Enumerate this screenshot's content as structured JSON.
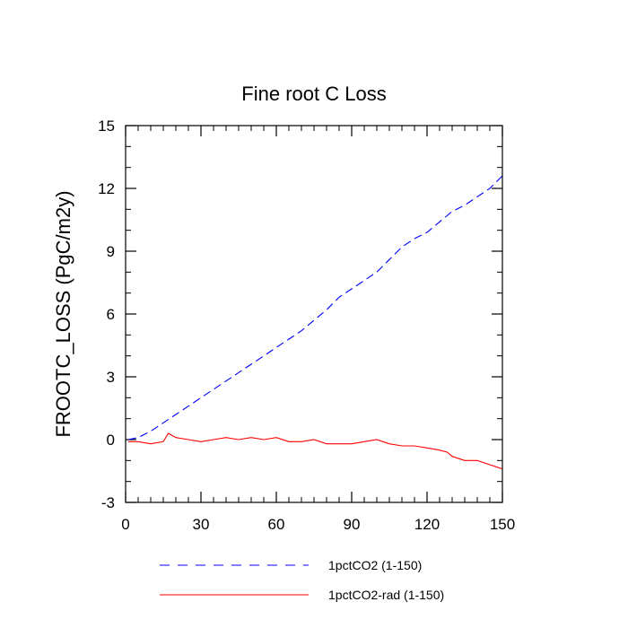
{
  "chart_data": {
    "type": "line",
    "title": "Fine root C Loss",
    "xlabel": "",
    "ylabel": "FROOTC_LOSS  (PgC/m2y)",
    "xlim": [
      0,
      150
    ],
    "ylim": [
      -3,
      15
    ],
    "x_ticks": [
      0,
      30,
      60,
      90,
      120,
      150
    ],
    "y_ticks": [
      -3,
      0,
      3,
      6,
      9,
      12,
      15
    ],
    "x_tick_labels": [
      "0",
      "30",
      "60",
      "90",
      "120",
      "150"
    ],
    "y_tick_labels": [
      "-3",
      "0",
      "3",
      "6",
      "9",
      "12",
      "15"
    ],
    "grid": false,
    "legend_position": "bottom",
    "series": [
      {
        "name": "1pctCO2 (1-150)",
        "color": "#0000ff",
        "style": "dashed",
        "x": [
          1,
          5,
          10,
          15,
          20,
          25,
          30,
          35,
          40,
          45,
          50,
          55,
          60,
          65,
          70,
          75,
          80,
          85,
          90,
          95,
          100,
          105,
          110,
          115,
          120,
          125,
          130,
          135,
          140,
          145,
          150
        ],
        "values": [
          0.0,
          0.1,
          0.4,
          0.8,
          1.2,
          1.6,
          2.0,
          2.4,
          2.8,
          3.2,
          3.6,
          4.0,
          4.4,
          4.8,
          5.2,
          5.7,
          6.2,
          6.8,
          7.2,
          7.6,
          8.0,
          8.6,
          9.2,
          9.6,
          9.9,
          10.4,
          10.9,
          11.2,
          11.6,
          12.0,
          12.6
        ]
      },
      {
        "name": "1pctCO2-rad (1-150)",
        "color": "#ff0000",
        "style": "solid",
        "x": [
          1,
          5,
          10,
          15,
          17,
          20,
          25,
          30,
          35,
          40,
          45,
          50,
          55,
          60,
          65,
          70,
          75,
          80,
          85,
          90,
          95,
          100,
          105,
          110,
          115,
          120,
          125,
          128,
          130,
          135,
          140,
          145,
          150
        ],
        "values": [
          -0.1,
          -0.1,
          -0.2,
          -0.1,
          0.3,
          0.1,
          0.0,
          -0.1,
          0.0,
          0.1,
          0.0,
          0.1,
          0.0,
          0.1,
          -0.1,
          -0.1,
          0.0,
          -0.2,
          -0.2,
          -0.2,
          -0.1,
          0.0,
          -0.2,
          -0.3,
          -0.3,
          -0.4,
          -0.5,
          -0.6,
          -0.8,
          -1.0,
          -1.0,
          -1.2,
          -1.4
        ]
      }
    ]
  }
}
